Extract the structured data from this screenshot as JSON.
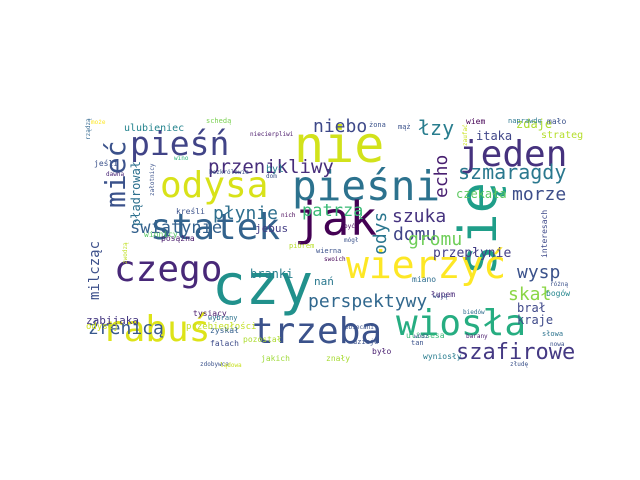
{
  "words": [
    {
      "text": "nie",
      "color": "#d2e21b"
    },
    {
      "text": "się",
      "color": "#1f9e89"
    },
    {
      "text": "jeden",
      "color": "#46327e"
    },
    {
      "text": "pieśń",
      "color": "#414487"
    },
    {
      "text": "odysa",
      "color": "#d8e219"
    },
    {
      "text": "pieśni",
      "color": "#2c728e"
    },
    {
      "text": "statek",
      "color": "#33638d"
    },
    {
      "text": "jak",
      "color": "#440154"
    },
    {
      "text": "czy",
      "color": "#21918c"
    },
    {
      "text": "czego",
      "color": "#482878"
    },
    {
      "text": "wierzyć",
      "color": "#fde725"
    },
    {
      "text": "rabuś",
      "color": "#dde318"
    },
    {
      "text": "trzeba",
      "color": "#3b528b"
    },
    {
      "text": "wiosła",
      "color": "#26ad81"
    },
    {
      "text": "mieć",
      "color": "#3b528b"
    },
    {
      "text": "przenikliwy",
      "color": "#472d7b"
    },
    {
      "text": "szafirowe",
      "color": "#443983"
    },
    {
      "text": "niebo",
      "color": "#3e4989"
    },
    {
      "text": "łzy",
      "color": "#287d8e"
    },
    {
      "text": "echo",
      "color": "#481f70"
    },
    {
      "text": "szmaragdy",
      "color": "#2a788e"
    },
    {
      "text": "morze",
      "color": "#3d4e8a"
    },
    {
      "text": "płynie",
      "color": "#2e6f8e"
    },
    {
      "text": "patrzą",
      "color": "#3aba76"
    },
    {
      "text": "szuka",
      "color": "#46337f"
    },
    {
      "text": "domu",
      "color": "#404588"
    },
    {
      "text": "gromu",
      "color": "#6ece58"
    },
    {
      "text": "świątynie",
      "color": "#34618d"
    },
    {
      "text": "odys",
      "color": "#2a768e"
    },
    {
      "text": "wysp",
      "color": "#3b528b"
    },
    {
      "text": "perspektywy",
      "color": "#31688e"
    },
    {
      "text": "źrenicą",
      "color": "#38588c"
    },
    {
      "text": "skał",
      "color": "#8bd646"
    },
    {
      "text": "milcząc",
      "color": "#3c4f8a"
    },
    {
      "text": "przepłynie",
      "color": "#433e85"
    },
    {
      "text": "kraje",
      "color": "#3e4a89"
    },
    {
      "text": "brał",
      "color": "#3f4889"
    },
    {
      "text": "zabijaka",
      "color": "#453781"
    },
    {
      "text": "branki",
      "color": "#277f8e"
    },
    {
      "text": "płądrował",
      "color": "#2d708e"
    },
    {
      "text": "czekała",
      "color": "#5ec962"
    },
    {
      "text": "itaka",
      "color": "#404688"
    },
    {
      "text": "zdaje",
      "color": "#addc30"
    },
    {
      "text": "strateg",
      "color": "#b5de2b"
    },
    {
      "text": "ulubieniec",
      "color": "#25848e"
    },
    {
      "text": "był",
      "color": "#277f8e"
    },
    {
      "text": "jebus",
      "color": "#433d84"
    },
    {
      "text": "nań",
      "color": "#2a788e"
    },
    {
      "text": "odysej",
      "color": "#d0e11c"
    },
    {
      "text": "przebiegłości",
      "color": "#c2df23"
    },
    {
      "text": "jakich",
      "color": "#9fda3a"
    },
    {
      "text": "znały",
      "color": "#a8db34"
    },
    {
      "text": "wyniosły",
      "color": "#287c8e"
    },
    {
      "text": "ulissesa",
      "color": "#38b977"
    },
    {
      "text": "było",
      "color": "#481f70"
    },
    {
      "text": "tysiący",
      "color": "#48186a"
    },
    {
      "text": "zyskał",
      "color": "#35608d"
    },
    {
      "text": "falach",
      "color": "#3e4c8a"
    },
    {
      "text": "miano",
      "color": "#2e6d8e"
    },
    {
      "text": "jeśli",
      "color": "#3b528b"
    },
    {
      "text": "dawna",
      "color": "#482475"
    },
    {
      "text": "kreśli",
      "color": "#3b528b"
    },
    {
      "text": "wino",
      "color": "#31b57b"
    },
    {
      "text": "winnicy",
      "color": "#5ac864"
    },
    {
      "text": "posążna",
      "color": "#481a6c"
    },
    {
      "text": "pozostał",
      "color": "#addc30"
    },
    {
      "text": "wybrany",
      "color": "#2c728e"
    },
    {
      "text": "interesach",
      "color": "#3e4989"
    },
    {
      "text": "naprawdę",
      "color": "#2a778e"
    },
    {
      "text": "łupem",
      "color": "#482979"
    },
    {
      "text": "bogów",
      "color": "#24868e"
    },
    {
      "text": "słowa",
      "color": "#2c738e"
    },
    {
      "text": "tan",
      "color": "#3b528b"
    },
    {
      "text": "mało",
      "color": "#3b528b"
    },
    {
      "text": "wiem",
      "color": "#440154"
    },
    {
      "text": "schedą",
      "color": "#7ad151"
    },
    {
      "text": "może",
      "color": "#fde725"
    },
    {
      "text": "rządzą",
      "color": "#31678e"
    },
    {
      "text": "żona",
      "color": "#3b528b"
    },
    {
      "text": "mąż",
      "color": "#3b528b"
    },
    {
      "text": "niecierpliwi",
      "color": "#481769"
    },
    {
      "text": "bezkrólewie",
      "color": "#3b528b"
    },
    {
      "text": "dom",
      "color": "#3b528b"
    },
    {
      "text": "nich",
      "color": "#440154"
    },
    {
      "text": "piórem",
      "color": "#b8de29"
    },
    {
      "text": "być",
      "color": "#46085c"
    },
    {
      "text": "mógł",
      "color": "#3b528b"
    },
    {
      "text": "wierna",
      "color": "#3b528b"
    },
    {
      "text": "swoich",
      "color": "#440154"
    },
    {
      "text": "dzieje",
      "color": "#3b528b"
    },
    {
      "text": "obiecani",
      "color": "#3b528b"
    },
    {
      "text": "zwodzą",
      "color": "#c0df25"
    },
    {
      "text": "zaufać",
      "color": "#cae11f"
    },
    {
      "text": "biedów",
      "color": "#2f6c8e"
    },
    {
      "text": "barany",
      "color": "#48196b"
    },
    {
      "text": "różną",
      "color": "#3b528b"
    },
    {
      "text": "wiją",
      "color": "#3b528b"
    },
    {
      "text": "wódz",
      "color": "#3b528b"
    },
    {
      "text": "złudę",
      "color": "#3b528b"
    },
    {
      "text": "zdobywca",
      "color": "#3b528b"
    },
    {
      "text": "nowa",
      "color": "#3b528b"
    },
    {
      "text": "załotnicy",
      "color": "#3b528b"
    },
    {
      "text": "lądowa",
      "color": "#c8e020"
    }
  ]
}
